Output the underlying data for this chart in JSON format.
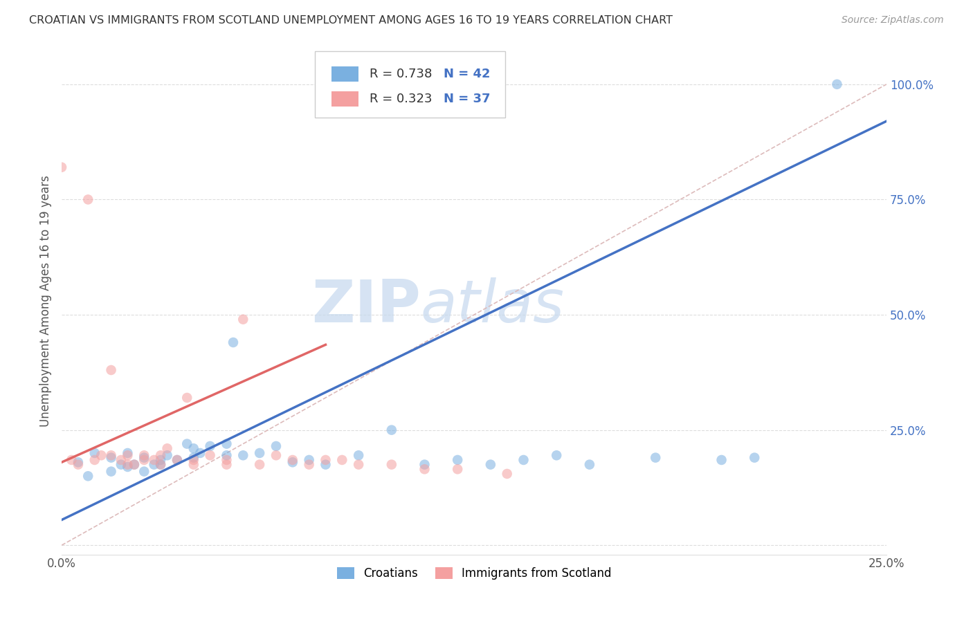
{
  "title": "CROATIAN VS IMMIGRANTS FROM SCOTLAND UNEMPLOYMENT AMONG AGES 16 TO 19 YEARS CORRELATION CHART",
  "source_text": "Source: ZipAtlas.com",
  "ylabel": "Unemployment Among Ages 16 to 19 years",
  "xlim": [
    0.0,
    0.25
  ],
  "ylim": [
    -0.02,
    1.08
  ],
  "xticks": [
    0.0,
    0.25
  ],
  "xticklabels": [
    "0.0%",
    "25.0%"
  ],
  "yticks": [
    0.0,
    0.25,
    0.5,
    0.75,
    1.0
  ],
  "yticklabels": [
    "",
    "25.0%",
    "50.0%",
    "75.0%",
    "100.0%"
  ],
  "blue_color": "#7ab0e0",
  "pink_color": "#f4a0a0",
  "blue_line_color": "#4472c4",
  "pink_line_color": "#e06666",
  "ref_line_color": "#ddbbbb",
  "watermark_zip": "ZIP",
  "watermark_atlas": "atlas",
  "legend_r_blue": "R = 0.738",
  "legend_n_blue": "N = 42",
  "legend_r_pink": "R = 0.323",
  "legend_n_pink": "N = 37",
  "blue_scatter_x": [
    0.005,
    0.008,
    0.01,
    0.015,
    0.015,
    0.018,
    0.02,
    0.02,
    0.022,
    0.025,
    0.025,
    0.028,
    0.03,
    0.03,
    0.032,
    0.035,
    0.038,
    0.04,
    0.04,
    0.042,
    0.045,
    0.05,
    0.05,
    0.052,
    0.055,
    0.06,
    0.065,
    0.07,
    0.075,
    0.08,
    0.09,
    0.1,
    0.11,
    0.12,
    0.13,
    0.14,
    0.15,
    0.16,
    0.18,
    0.2,
    0.21,
    0.235
  ],
  "blue_scatter_y": [
    0.18,
    0.15,
    0.2,
    0.16,
    0.19,
    0.175,
    0.17,
    0.2,
    0.175,
    0.16,
    0.19,
    0.175,
    0.185,
    0.175,
    0.195,
    0.185,
    0.22,
    0.19,
    0.21,
    0.2,
    0.215,
    0.195,
    0.22,
    0.44,
    0.195,
    0.2,
    0.215,
    0.18,
    0.185,
    0.175,
    0.195,
    0.25,
    0.175,
    0.185,
    0.175,
    0.185,
    0.195,
    0.175,
    0.19,
    0.185,
    0.19,
    1.0
  ],
  "pink_scatter_x": [
    0.0,
    0.003,
    0.005,
    0.008,
    0.01,
    0.012,
    0.015,
    0.015,
    0.018,
    0.02,
    0.02,
    0.022,
    0.025,
    0.025,
    0.028,
    0.03,
    0.03,
    0.032,
    0.035,
    0.038,
    0.04,
    0.04,
    0.045,
    0.05,
    0.05,
    0.055,
    0.06,
    0.065,
    0.07,
    0.075,
    0.08,
    0.085,
    0.09,
    0.1,
    0.11,
    0.12,
    0.135
  ],
  "pink_scatter_y": [
    0.82,
    0.185,
    0.175,
    0.75,
    0.185,
    0.195,
    0.195,
    0.38,
    0.185,
    0.175,
    0.195,
    0.175,
    0.185,
    0.195,
    0.185,
    0.195,
    0.175,
    0.21,
    0.185,
    0.32,
    0.185,
    0.175,
    0.195,
    0.185,
    0.175,
    0.49,
    0.175,
    0.195,
    0.185,
    0.175,
    0.185,
    0.185,
    0.175,
    0.175,
    0.165,
    0.165,
    0.155
  ],
  "blue_line_x": [
    0.0,
    0.25
  ],
  "blue_line_y": [
    0.055,
    0.92
  ],
  "pink_line_x": [
    0.0,
    0.08
  ],
  "pink_line_y": [
    0.18,
    0.435
  ],
  "ref_line_x": [
    0.0,
    0.25
  ],
  "ref_line_y": [
    0.0,
    1.0
  ]
}
